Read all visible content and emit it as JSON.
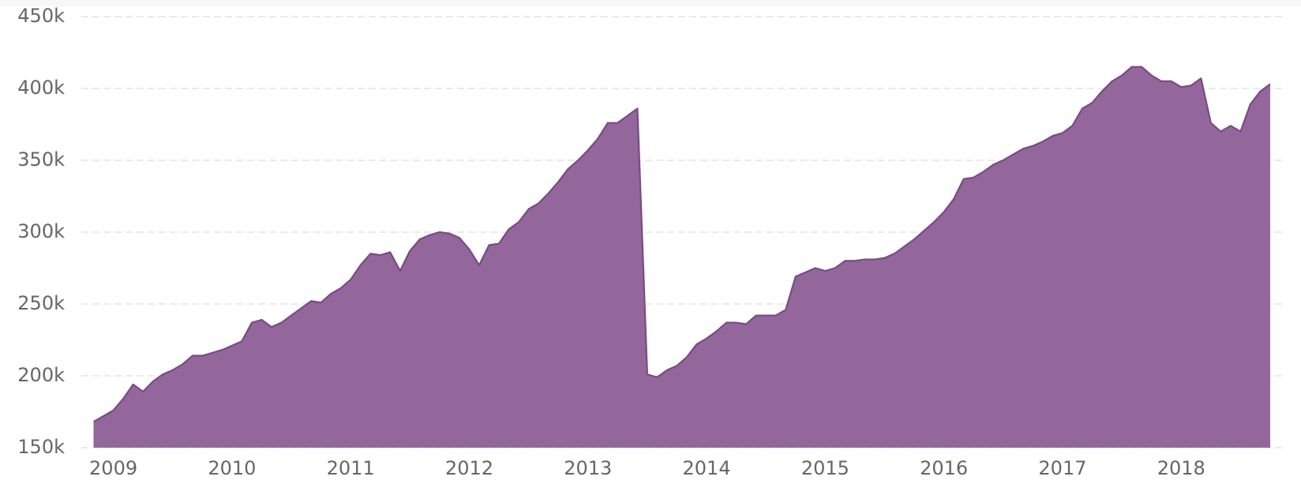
{
  "chart_data": {
    "type": "area",
    "x": [
      2008.833,
      2008.917,
      2009,
      2009.083,
      2009.167,
      2009.25,
      2009.333,
      2009.417,
      2009.5,
      2009.583,
      2009.667,
      2009.75,
      2009.833,
      2009.917,
      2010,
      2010.083,
      2010.167,
      2010.25,
      2010.333,
      2010.417,
      2010.5,
      2010.583,
      2010.667,
      2010.75,
      2010.833,
      2010.917,
      2011,
      2011.083,
      2011.167,
      2011.25,
      2011.333,
      2011.417,
      2011.5,
      2011.583,
      2011.667,
      2011.75,
      2011.833,
      2011.917,
      2012,
      2012.083,
      2012.167,
      2012.25,
      2012.333,
      2012.417,
      2012.5,
      2012.583,
      2012.667,
      2012.75,
      2012.833,
      2012.917,
      2013,
      2013.083,
      2013.167,
      2013.25,
      2013.333,
      2013.417,
      2013.5,
      2013.583,
      2013.667,
      2013.75,
      2013.833,
      2013.917,
      2014,
      2014.083,
      2014.167,
      2014.25,
      2014.333,
      2014.417,
      2014.5,
      2014.583,
      2014.667,
      2014.75,
      2014.833,
      2014.917,
      2015,
      2015.083,
      2015.167,
      2015.25,
      2015.333,
      2015.417,
      2015.5,
      2015.583,
      2015.667,
      2015.75,
      2015.833,
      2015.917,
      2016,
      2016.083,
      2016.167,
      2016.25,
      2016.333,
      2016.417,
      2016.5,
      2016.583,
      2016.667,
      2016.75,
      2016.833,
      2016.917,
      2017,
      2017.083,
      2017.167,
      2017.25,
      2017.333,
      2017.417,
      2017.5,
      2017.583,
      2017.667,
      2017.75,
      2017.833,
      2017.917,
      2018,
      2018.083,
      2018.167,
      2018.25,
      2018.333,
      2018.417,
      2018.5,
      2018.583,
      2018.667,
      2018.75
    ],
    "values": [
      168000,
      172000,
      176000,
      184000,
      194000,
      189000,
      196000,
      201000,
      204000,
      208000,
      214000,
      214000,
      216000,
      218000,
      221000,
      224000,
      237000,
      239000,
      234000,
      237000,
      242000,
      247000,
      252000,
      251000,
      257000,
      261000,
      267000,
      277000,
      285000,
      284000,
      286000,
      273000,
      287000,
      295000,
      298000,
      300000,
      299000,
      296000,
      288000,
      277000,
      291000,
      292000,
      302000,
      307000,
      316000,
      320000,
      327000,
      335000,
      344000,
      350000,
      357000,
      365000,
      376000,
      376000,
      381000,
      386000,
      201000,
      199000,
      204000,
      207000,
      213000,
      222000,
      226000,
      231000,
      237000,
      237000,
      236000,
      242000,
      242000,
      242000,
      246000,
      269000,
      272000,
      275000,
      273000,
      275000,
      280000,
      280000,
      281000,
      281000,
      282000,
      285000,
      290000,
      295000,
      301000,
      307000,
      314000,
      323000,
      337000,
      338000,
      342000,
      347000,
      350000,
      354000,
      358000,
      360000,
      363000,
      367000,
      369000,
      374000,
      386000,
      390000,
      398000,
      405000,
      409000,
      415000,
      415000,
      409000,
      405000,
      405000,
      401000,
      402000,
      407000,
      376000,
      370000,
      374000,
      370000,
      389000,
      398000,
      403000
    ],
    "color": "#93679c",
    "line_color": "#7a4a85",
    "xlim": [
      2008.73,
      2018.87
    ],
    "xticks": [
      2009,
      2010,
      2011,
      2012,
      2013,
      2014,
      2015,
      2016,
      2017,
      2018
    ],
    "ylim": [
      150000,
      450000
    ],
    "yticks": [
      {
        "value": 150000,
        "label": "150k"
      },
      {
        "value": 200000,
        "label": "200k"
      },
      {
        "value": 250000,
        "label": "250k"
      },
      {
        "value": 300000,
        "label": "300k"
      },
      {
        "value": 350000,
        "label": "350k"
      },
      {
        "value": 400000,
        "label": "400k"
      },
      {
        "value": 450000,
        "label": "450k"
      }
    ],
    "grid": true
  }
}
